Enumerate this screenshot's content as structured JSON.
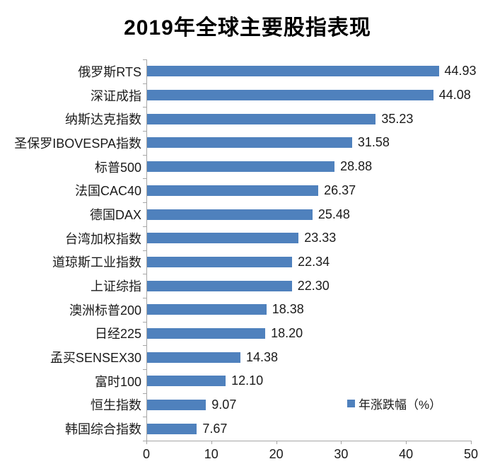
{
  "chart_data": {
    "type": "bar",
    "orientation": "horizontal",
    "title": "2019年全球主要股指表现",
    "legend": "年涨跌幅（%）",
    "legend_position": "inside-bottom-right",
    "bar_color": "#4f81bd",
    "axis_color": "#a6a6a6",
    "grid": false,
    "xlim": [
      0,
      50
    ],
    "x_ticks": [
      "0",
      "10",
      "20",
      "30",
      "40",
      "50"
    ],
    "categories": [
      "俄罗斯RTS",
      "深证成指",
      "纳斯达克指数",
      "圣保罗IBOVESPA指数",
      "标普500",
      "法国CAC40",
      "德国DAX",
      "台湾加权指数",
      "道琼斯工业指数",
      "上证综指",
      "澳洲标普200",
      "日经225",
      "孟买SENSEX30",
      "富时100",
      "恒生指数",
      "韩国综合指数"
    ],
    "values": [
      44.93,
      44.08,
      35.23,
      31.58,
      28.88,
      26.37,
      25.48,
      23.33,
      22.34,
      22.3,
      18.38,
      18.2,
      14.38,
      12.1,
      9.07,
      7.67
    ],
    "value_labels": [
      "44.93",
      "44.08",
      "35.23",
      "31.58",
      "28.88",
      "26.37",
      "25.48",
      "23.33",
      "22.34",
      "22.30",
      "18.38",
      "18.20",
      "14.38",
      "12.10",
      "9.07",
      "7.67"
    ]
  }
}
